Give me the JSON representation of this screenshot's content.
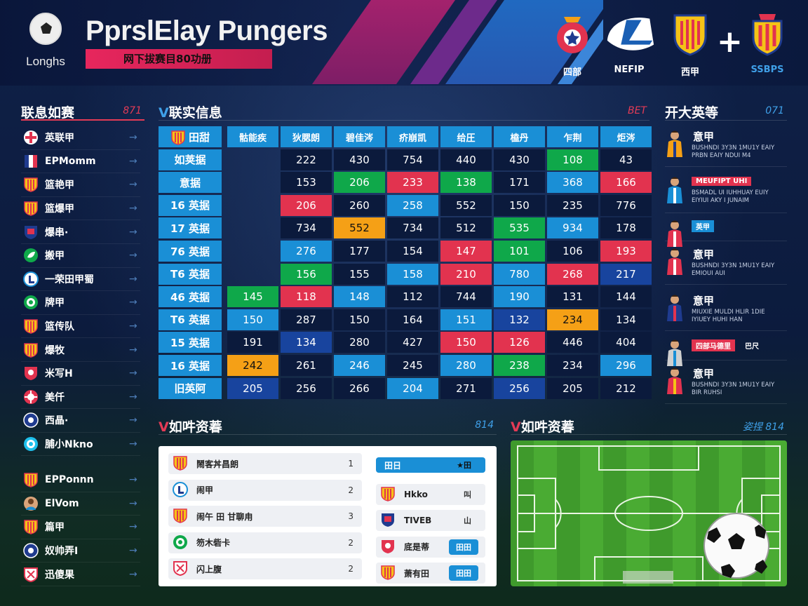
{
  "header": {
    "title": "PprslElay Pungers",
    "logo_text": "Longhs",
    "subtitle": "网下拔赛目80功册",
    "crests": [
      {
        "caption": "四部"
      },
      {
        "caption": "NEFIP"
      },
      {
        "caption": "西甲"
      },
      {
        "caption": "SSBPS"
      }
    ],
    "plus": "+"
  },
  "sidebar": {
    "title": "联息如赛",
    "right_label": "871",
    "items": [
      {
        "label": "英联甲",
        "icon": "red-cross-crest-icon"
      },
      {
        "label": "EPMomm",
        "icon": "french-flag-icon"
      },
      {
        "label": "篮艳甲",
        "icon": "striped-shield-icon"
      },
      {
        "label": "篮爆甲",
        "icon": "striped-shield-icon"
      },
      {
        "label": "爆串·",
        "icon": "club-crest-icon"
      },
      {
        "label": "搬甲",
        "icon": "green-leaf-icon"
      },
      {
        "label": "一荣田甲蜀",
        "icon": "blue-circle-crest-icon"
      },
      {
        "label": "牌甲",
        "icon": "green-circle-crest-icon"
      },
      {
        "label": "篮传队",
        "icon": "striped-shield-icon"
      },
      {
        "label": "爆牧",
        "icon": "striped-shield-icon"
      },
      {
        "label": "米写H",
        "icon": "red-shield-icon"
      },
      {
        "label": "美仟",
        "icon": "red-circle-crest-icon"
      },
      {
        "label": "西晶·",
        "icon": "navy-circle-crest-icon"
      },
      {
        "label": "脯小Nkno",
        "icon": "cyan-circle-crest-icon"
      }
    ],
    "items2": [
      {
        "label": "EPPonnn",
        "icon": "striped-shield-icon"
      },
      {
        "label": "ElVom",
        "icon": "player-avatar-icon"
      },
      {
        "label": "篇甲",
        "icon": "striped-shield-icon"
      },
      {
        "label": "奴帅弄I",
        "icon": "navy-circle-crest-icon"
      },
      {
        "label": "迅傻果",
        "icon": "red-white-crest-icon"
      }
    ]
  },
  "table": {
    "title": "联实信息",
    "right_label": "BET",
    "team_header": "田甜",
    "columns": [
      "骷能疾",
      "狄腮朗",
      "碧佳涔",
      "疥崩凯",
      "给圧",
      "榼丹",
      "乍荆",
      "炬涔"
    ],
    "rows": [
      {
        "label": "如荚据",
        "cells": [
          [
            "",
            "blank"
          ],
          [
            "222",
            "dark"
          ],
          [
            "430",
            "dark"
          ],
          [
            "754",
            "dark"
          ],
          [
            "440",
            "dark"
          ],
          [
            "430",
            "dark"
          ],
          [
            "108",
            "green"
          ],
          [
            "43",
            "dark"
          ]
        ]
      },
      {
        "label": "意据",
        "cells": [
          [
            "",
            "blank"
          ],
          [
            "153",
            "dark"
          ],
          [
            "206",
            "green"
          ],
          [
            "233",
            "red"
          ],
          [
            "138",
            "green"
          ],
          [
            "171",
            "dark"
          ],
          [
            "368",
            "blue"
          ],
          [
            "166",
            "red"
          ]
        ]
      },
      {
        "label": "16 英据",
        "cells": [
          [
            "",
            "blank"
          ],
          [
            "206",
            "red"
          ],
          [
            "260",
            "dark"
          ],
          [
            "258",
            "blue"
          ],
          [
            "552",
            "dark"
          ],
          [
            "150",
            "dark"
          ],
          [
            "235",
            "dark"
          ],
          [
            "776",
            "dark"
          ]
        ]
      },
      {
        "label": "17 英据",
        "cells": [
          [
            "",
            "blank"
          ],
          [
            "734",
            "dark"
          ],
          [
            "552",
            "orange"
          ],
          [
            "734",
            "dark"
          ],
          [
            "512",
            "dark"
          ],
          [
            "535",
            "green"
          ],
          [
            "934",
            "blue"
          ],
          [
            "178",
            "dark"
          ]
        ]
      },
      {
        "label": "76 英据",
        "cells": [
          [
            "",
            "blank"
          ],
          [
            "276",
            "blue"
          ],
          [
            "177",
            "dark"
          ],
          [
            "154",
            "dark"
          ],
          [
            "147",
            "red"
          ],
          [
            "101",
            "green"
          ],
          [
            "106",
            "dark"
          ],
          [
            "193",
            "red"
          ]
        ]
      },
      {
        "label": "T6 英据",
        "cells": [
          [
            "",
            "blank"
          ],
          [
            "156",
            "green"
          ],
          [
            "155",
            "dark"
          ],
          [
            "158",
            "blue"
          ],
          [
            "210",
            "red"
          ],
          [
            "780",
            "blue"
          ],
          [
            "268",
            "red"
          ],
          [
            "217",
            "navy"
          ]
        ]
      },
      {
        "label": "46 英据",
        "cells": [
          [
            "145",
            "green"
          ],
          [
            "118",
            "red"
          ],
          [
            "148",
            "blue"
          ],
          [
            "112",
            "dark"
          ],
          [
            "744",
            "dark"
          ],
          [
            "190",
            "blue"
          ],
          [
            "131",
            "dark"
          ],
          [
            "144",
            "dark"
          ]
        ]
      },
      {
        "label": "T6 英据",
        "cells": [
          [
            "150",
            "blue"
          ],
          [
            "287",
            "dark"
          ],
          [
            "150",
            "dark"
          ],
          [
            "164",
            "dark"
          ],
          [
            "151",
            "blue"
          ],
          [
            "132",
            "navy"
          ],
          [
            "234",
            "orange"
          ],
          [
            "134",
            "dark"
          ]
        ]
      },
      {
        "label": "15 英据",
        "cells": [
          [
            "191",
            "dark"
          ],
          [
            "134",
            "navy"
          ],
          [
            "280",
            "dark"
          ],
          [
            "427",
            "dark"
          ],
          [
            "150",
            "red"
          ],
          [
            "126",
            "red"
          ],
          [
            "446",
            "dark"
          ],
          [
            "404",
            "dark"
          ]
        ]
      },
      {
        "label": "16 英据",
        "cells": [
          [
            "242",
            "orange"
          ],
          [
            "261",
            "dark"
          ],
          [
            "246",
            "blue"
          ],
          [
            "245",
            "dark"
          ],
          [
            "280",
            "blue"
          ],
          [
            "238",
            "green"
          ],
          [
            "234",
            "dark"
          ],
          [
            "296",
            "blue"
          ]
        ]
      },
      {
        "label": "旧英阿",
        "cells": [
          [
            "205",
            "navy"
          ],
          [
            "256",
            "dark"
          ],
          [
            "266",
            "dark"
          ],
          [
            "204",
            "blue"
          ],
          [
            "271",
            "dark"
          ],
          [
            "256",
            "navy"
          ],
          [
            "205",
            "dark"
          ],
          [
            "212",
            "dark"
          ]
        ]
      }
    ]
  },
  "right_panel": {
    "title": "开大英等",
    "right_label": "071",
    "players": [
      {
        "name": "意甲",
        "desc": "BUSHNDI 3Y3N 1MU1Y EAIY\nPRBN EAIY NDUI M4",
        "tag": ""
      },
      {
        "name": "",
        "desc": "BSMADL UI IUHHUAY EUIY\nEIYIUI AKY I JUNAIM",
        "tag": "MEUFIPT UHI"
      },
      {
        "name": "",
        "desc": "",
        "tag": "英甲"
      },
      {
        "name": "意甲",
        "desc": "BUSHNDI 3Y3N 1MU1Y EAIY\nEMIOUI AUI",
        "tag": ""
      },
      {
        "name": "意甲",
        "desc": "MIUXIE MULDI HLIR 1DIE\nIYIUEY HUHI HAN",
        "tag": ""
      },
      {
        "name": "",
        "desc": "",
        "tag": "四部马德里",
        "tag2": "巴尺"
      },
      {
        "name": "意甲",
        "desc": "BUSHNDI 3Y3N 1MU1Y EAIY\nBIR RUHSI",
        "tag": ""
      }
    ]
  },
  "bottom_list": {
    "title": "如吽资萶",
    "right_label": "814",
    "left_items": [
      {
        "label": "鬧客丼昌朗",
        "num": "1"
      },
      {
        "label": "闹甲",
        "num": "2"
      },
      {
        "label": "闹午 田 甘聊甪",
        "num": "3"
      },
      {
        "label": "笏木砦卡",
        "num": "2"
      },
      {
        "label": "闪上腹",
        "num": "2"
      }
    ],
    "right_items": [
      {
        "label": "田日",
        "btn": "★田"
      },
      {
        "label": "Hkko",
        "btn": "叫"
      },
      {
        "label": "TIVEB",
        "btn": "山"
      },
      {
        "label": "底是蒂",
        "btn": "田田"
      },
      {
        "label": "萧有田",
        "btn": "田田"
      }
    ]
  },
  "pitch_panel": {
    "title": "如吽资萶",
    "right_label": "姿捏 814"
  },
  "colors": {
    "accent_blue": "#1a8fd6",
    "accent_red": "#e2334f",
    "green": "#0fa84a",
    "orange": "#f5a016",
    "navy": "#18449e"
  }
}
